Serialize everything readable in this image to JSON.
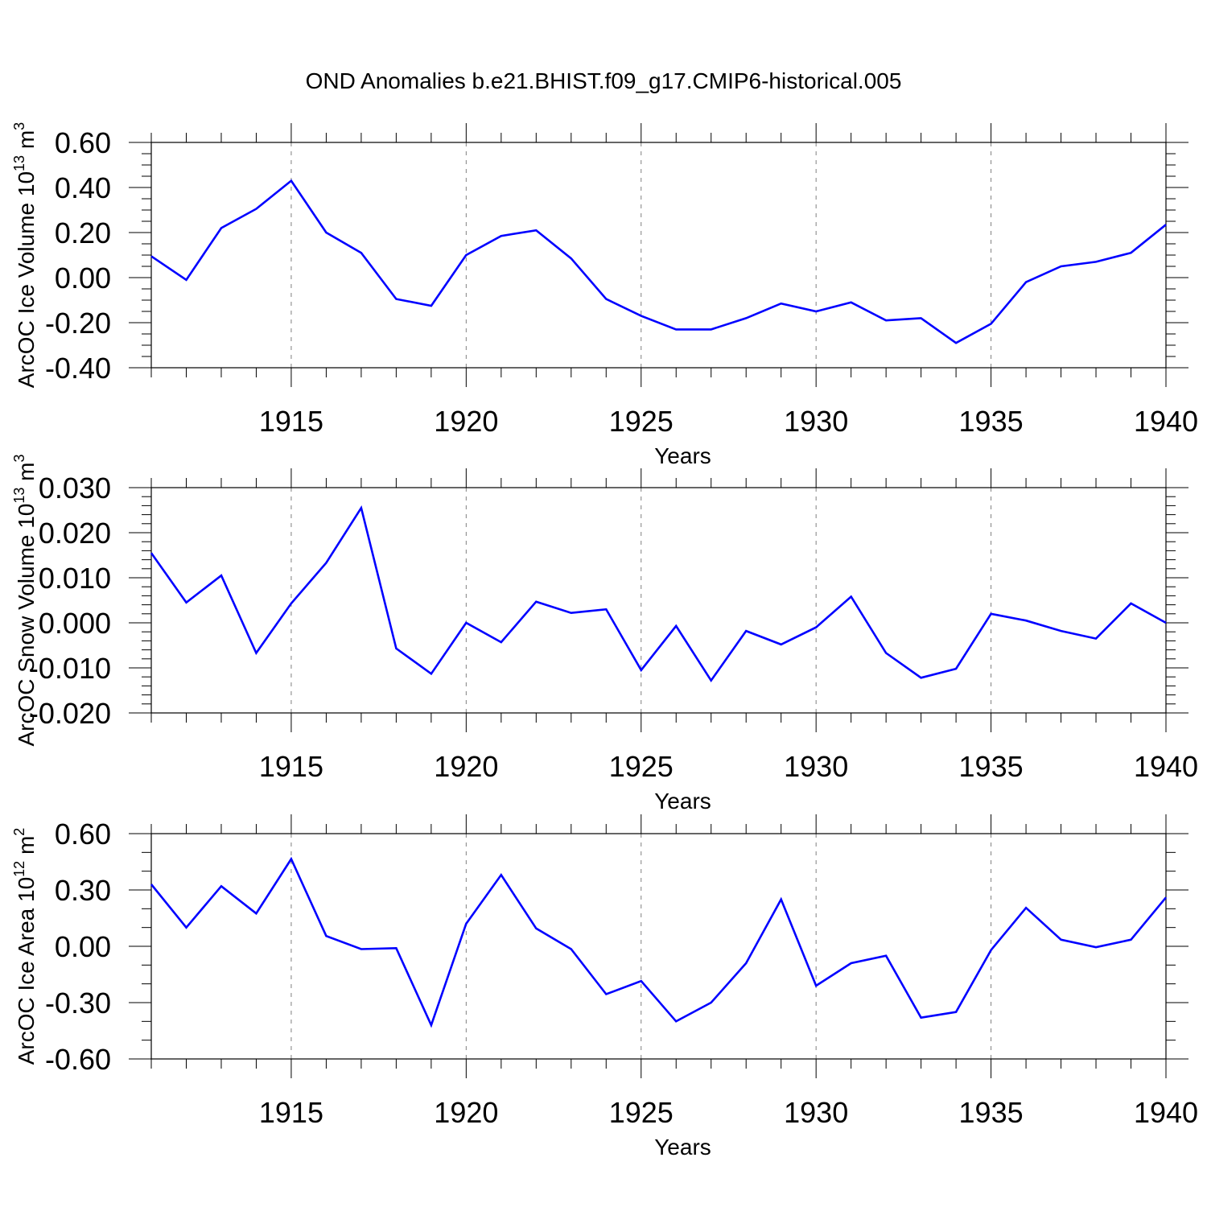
{
  "title": "OND Anomalies b.e21.BHIST.f09_g17.CMIP6-historical.005",
  "colors": {
    "series": "#0000ff",
    "grid": "#808080",
    "axis": "#000000"
  },
  "chart_data": [
    {
      "type": "line",
      "xlabel": "Years",
      "ylabel": {
        "text": "ArcOC Ice Volume 10",
        "exp": "13",
        "unit": " m",
        "unit_exp": "3"
      },
      "xlim": [
        1911,
        1940
      ],
      "ylim": [
        -0.4,
        0.6
      ],
      "ymajor": [
        -0.4,
        -0.2,
        0.0,
        0.2,
        0.4,
        0.6
      ],
      "ytick_labels": [
        "-0.40",
        "-0.20",
        "0.00",
        "0.20",
        "0.40",
        "0.60"
      ],
      "yminor_step": 0.05,
      "xticks": [
        1915,
        1920,
        1925,
        1930,
        1935,
        1940
      ],
      "xtick_labels": [
        "1915",
        "1920",
        "1925",
        "1930",
        "1935",
        "1940"
      ],
      "grid": "vertical dashed at labeled years",
      "x": [
        1911,
        1912,
        1913,
        1914,
        1915,
        1916,
        1917,
        1918,
        1919,
        1920,
        1921,
        1922,
        1923,
        1924,
        1925,
        1926,
        1927,
        1928,
        1929,
        1930,
        1931,
        1932,
        1933,
        1934,
        1935,
        1936,
        1937,
        1938,
        1939,
        1940
      ],
      "y": [
        0.095,
        -0.01,
        0.22,
        0.305,
        0.43,
        0.2,
        0.11,
        -0.095,
        -0.125,
        0.1,
        0.185,
        0.21,
        0.085,
        -0.095,
        -0.17,
        -0.23,
        -0.23,
        -0.18,
        -0.115,
        -0.15,
        -0.11,
        -0.19,
        -0.18,
        -0.29,
        -0.205,
        -0.02,
        0.05,
        0.07,
        0.11,
        0.235
      ]
    },
    {
      "type": "line",
      "xlabel": "Years",
      "ylabel": {
        "text": "ArcOC Snow Volume 10",
        "exp": "13",
        "unit": " m",
        "unit_exp": "3"
      },
      "xlim": [
        1911,
        1940
      ],
      "ylim": [
        -0.02,
        0.03
      ],
      "ymajor": [
        -0.02,
        -0.01,
        0.0,
        0.01,
        0.02,
        0.03
      ],
      "ytick_labels": [
        "-0.020",
        "-0.010",
        "0.000",
        "0.010",
        "0.020",
        "0.030"
      ],
      "yminor_step": 0.002,
      "xticks": [
        1915,
        1920,
        1925,
        1930,
        1935,
        1940
      ],
      "xtick_labels": [
        "1915",
        "1920",
        "1925",
        "1930",
        "1935",
        "1940"
      ],
      "grid": "vertical dashed at labeled years",
      "x": [
        1911,
        1912,
        1913,
        1914,
        1915,
        1916,
        1917,
        1918,
        1919,
        1920,
        1921,
        1922,
        1923,
        1924,
        1925,
        1926,
        1927,
        1928,
        1929,
        1930,
        1931,
        1932,
        1933,
        1934,
        1935,
        1936,
        1937,
        1938,
        1939,
        1940
      ],
      "y": [
        0.0155,
        0.0045,
        0.0105,
        -0.0067,
        0.0043,
        0.0133,
        0.0255,
        -0.0057,
        -0.0113,
        0.0,
        -0.0043,
        0.0047,
        0.0022,
        0.003,
        -0.0105,
        -0.0007,
        -0.0128,
        -0.0018,
        -0.0048,
        -0.001,
        0.0058,
        -0.0067,
        -0.0122,
        -0.0102,
        0.002,
        0.0005,
        -0.0018,
        -0.0035,
        0.0043,
        0.0
      ]
    },
    {
      "type": "line",
      "xlabel": "Years",
      "ylabel": {
        "text": "ArcOC Ice Area 10",
        "exp": "12",
        "unit": " m",
        "unit_exp": "2"
      },
      "xlim": [
        1911,
        1940
      ],
      "ylim": [
        -0.6,
        0.6
      ],
      "ymajor": [
        -0.6,
        -0.3,
        0.0,
        0.3,
        0.6
      ],
      "ytick_labels": [
        "-0.60",
        "-0.30",
        "0.00",
        "0.30",
        "0.60"
      ],
      "yminor_step": 0.1,
      "xticks": [
        1915,
        1920,
        1925,
        1930,
        1935,
        1940
      ],
      "xtick_labels": [
        "1915",
        "1920",
        "1925",
        "1930",
        "1935",
        "1940"
      ],
      "grid": "vertical dashed at labeled years",
      "x": [
        1911,
        1912,
        1913,
        1914,
        1915,
        1916,
        1917,
        1918,
        1919,
        1920,
        1921,
        1922,
        1923,
        1924,
        1925,
        1926,
        1927,
        1928,
        1929,
        1930,
        1931,
        1932,
        1933,
        1934,
        1935,
        1936,
        1937,
        1938,
        1939,
        1940
      ],
      "y": [
        0.33,
        0.1,
        0.32,
        0.175,
        0.465,
        0.055,
        -0.015,
        -0.01,
        -0.42,
        0.12,
        0.38,
        0.095,
        -0.015,
        -0.255,
        -0.185,
        -0.4,
        -0.3,
        -0.09,
        0.25,
        -0.21,
        -0.09,
        -0.05,
        -0.38,
        -0.35,
        -0.02,
        0.205,
        0.035,
        -0.005,
        0.035,
        0.26
      ]
    }
  ]
}
